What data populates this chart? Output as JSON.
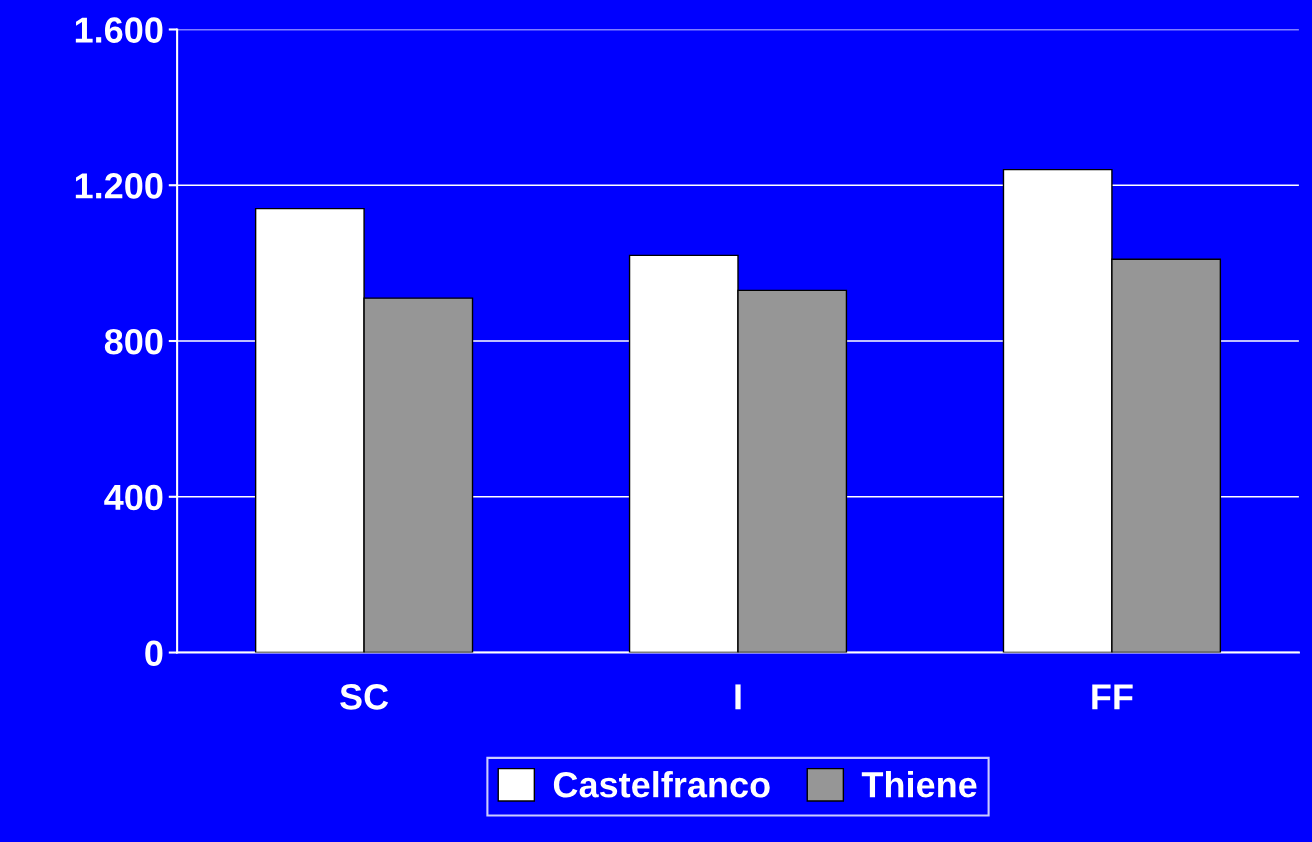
{
  "chart_data": {
    "type": "bar",
    "categories": [
      "SC",
      "I",
      "FF"
    ],
    "series": [
      {
        "name": "Castelfranco",
        "color": "#ffffff",
        "values": [
          1140,
          1020,
          1240
        ]
      },
      {
        "name": "Thiene",
        "color": "#969696",
        "values": [
          910,
          930,
          1010
        ]
      }
    ],
    "ylim": [
      0,
      1600
    ],
    "yticks": [
      0,
      400,
      800,
      {
        "value": 1200,
        "label": "1.200"
      },
      {
        "value": 1600,
        "label": "1.600"
      }
    ],
    "grid": "y",
    "legend": "bottom"
  }
}
